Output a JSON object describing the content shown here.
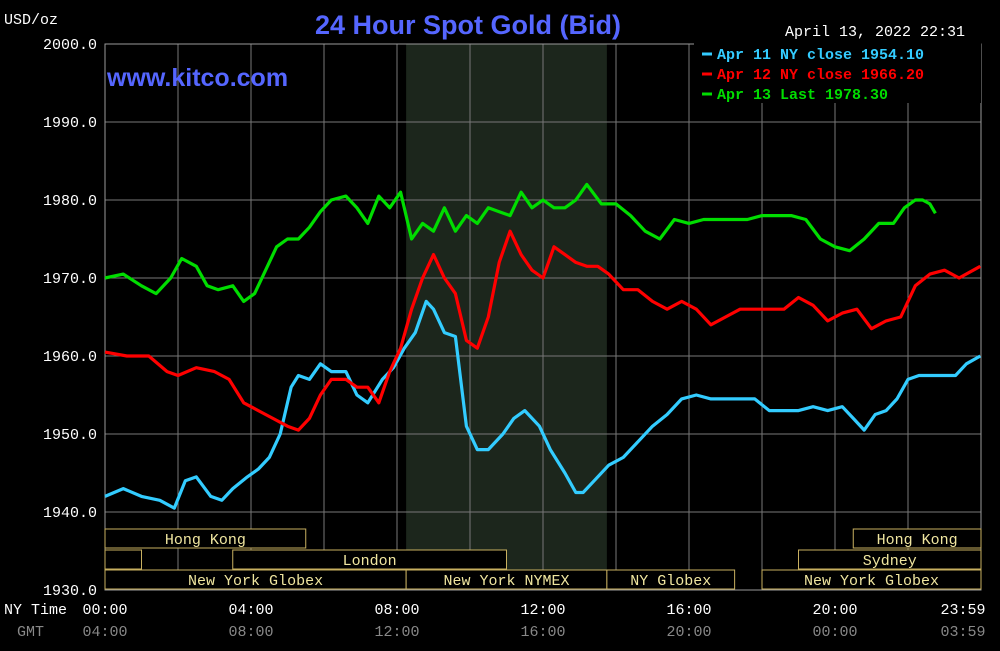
{
  "header": {
    "unit": "USD/oz",
    "title": "24 Hour Spot Gold (Bid)",
    "timestamp": "April 13, 2022 22:31",
    "watermark": "www.kitco.com"
  },
  "legend": {
    "entries": [
      {
        "label": "Apr 11 NY close 1954.10",
        "color": "#33ccff"
      },
      {
        "label": "Apr 12 NY close 1966.20",
        "color": "#ff0000"
      },
      {
        "label": "Apr 13 Last 1978.30",
        "color": "#00dd00"
      }
    ]
  },
  "axis": {
    "ny_time_label": "NY Time",
    "gmt_label": "GMT",
    "x_ticks_ny": [
      "00:00",
      "04:00",
      "08:00",
      "12:00",
      "16:00",
      "20:00",
      "23:59"
    ],
    "x_ticks_gmt": [
      "04:00",
      "08:00",
      "12:00",
      "16:00",
      "20:00",
      "00:00",
      "03:59"
    ],
    "y_ticks": [
      "2000.0",
      "1990.0",
      "1980.0",
      "1970.0",
      "1960.0",
      "1950.0",
      "1940.0",
      "1930.0"
    ]
  },
  "sessions": {
    "row1": [
      {
        "label": "Hong Kong",
        "start": 0.0,
        "end": 5.5
      },
      {
        "label": "Hong Kong",
        "start": 20.5,
        "end": 24.0
      }
    ],
    "row2": [
      {
        "label": "",
        "start": 0.0,
        "end": 1.0
      },
      {
        "label": "London",
        "start": 3.5,
        "end": 11.0
      },
      {
        "label": "Sydney",
        "start": 19.0,
        "end": 24.0
      }
    ],
    "row3": [
      {
        "label": "New York Globex",
        "start": 0.0,
        "end": 8.25
      },
      {
        "label": "New York NYMEX",
        "start": 8.25,
        "end": 13.75
      },
      {
        "label": "NY Globex",
        "start": 13.75,
        "end": 17.25
      },
      {
        "label": "New York Globex",
        "start": 18.0,
        "end": 24.0
      }
    ]
  },
  "chart_data": {
    "type": "line",
    "title": "24 Hour Spot Gold (Bid)",
    "ylabel": "USD/oz",
    "xlabel": "NY Time",
    "x_unit": "hours (NY time)",
    "xlim": [
      0,
      24
    ],
    "ylim": [
      1930,
      2000
    ],
    "grid": true,
    "legend_position": "top-right",
    "nymex_shade": [
      8.25,
      13.75
    ],
    "series": [
      {
        "name": "Apr 11 NY close 1954.10",
        "color": "#33ccff",
        "x": [
          0,
          0.5,
          1,
          1.5,
          1.9,
          2.2,
          2.5,
          2.9,
          3.2,
          3.5,
          3.9,
          4.2,
          4.5,
          4.8,
          5.1,
          5.3,
          5.6,
          5.9,
          6.2,
          6.6,
          6.9,
          7.2,
          7.6,
          7.9,
          8.2,
          8.5,
          8.8,
          9.0,
          9.3,
          9.6,
          9.9,
          10.2,
          10.5,
          10.9,
          11.2,
          11.5,
          11.9,
          12.2,
          12.6,
          12.9,
          13.1,
          13.4,
          13.8,
          14.2,
          14.6,
          15.0,
          15.4,
          15.8,
          16.2,
          16.6,
          17.0,
          17.4,
          17.8,
          18.2,
          18.6,
          19.0,
          19.4,
          19.8,
          20.2,
          20.5,
          20.8,
          21.1,
          21.4,
          21.7,
          22.0,
          22.3,
          22.7,
          23.0,
          23.3,
          23.6,
          23.98
        ],
        "y": [
          1942,
          1943,
          1942,
          1941.5,
          1940.5,
          1944,
          1944.5,
          1942,
          1941.5,
          1943,
          1944.5,
          1945.5,
          1947,
          1950,
          1956,
          1957.5,
          1957,
          1959,
          1958,
          1958,
          1955,
          1954,
          1957,
          1958.5,
          1961,
          1963,
          1967,
          1966,
          1963,
          1962.5,
          1951,
          1948,
          1948,
          1950,
          1952,
          1953,
          1951,
          1948,
          1945,
          1942.5,
          1942.5,
          1944,
          1946,
          1947,
          1949,
          1951,
          1952.5,
          1954.5,
          1955,
          1954.5,
          1954.5,
          1954.5,
          1954.5,
          1953,
          1953,
          1953,
          1953.5,
          1953,
          1953.5,
          1952,
          1950.5,
          1952.5,
          1953,
          1954.5,
          1957,
          1957.5,
          1957.5,
          1957.5,
          1957.5,
          1959,
          1960
        ]
      },
      {
        "name": "Apr 12 NY close 1966.20",
        "color": "#ff0000",
        "x": [
          0,
          0.6,
          1.2,
          1.7,
          2.0,
          2.5,
          3.0,
          3.4,
          3.8,
          4.2,
          4.6,
          5.0,
          5.3,
          5.6,
          5.9,
          6.2,
          6.6,
          6.9,
          7.2,
          7.5,
          7.8,
          8.1,
          8.4,
          8.7,
          9.0,
          9.3,
          9.6,
          9.9,
          10.2,
          10.5,
          10.8,
          11.1,
          11.4,
          11.7,
          12.0,
          12.3,
          12.6,
          12.9,
          13.2,
          13.5,
          13.8,
          14.2,
          14.6,
          15.0,
          15.4,
          15.8,
          16.2,
          16.6,
          17.0,
          17.4,
          17.8,
          18.2,
          18.6,
          19.0,
          19.4,
          19.8,
          20.2,
          20.6,
          21.0,
          21.4,
          21.8,
          22.2,
          22.6,
          23.0,
          23.4,
          23.98
        ],
        "y": [
          1960.5,
          1960,
          1960,
          1958,
          1957.5,
          1958.5,
          1958,
          1957,
          1954,
          1953,
          1952,
          1951,
          1950.5,
          1952,
          1955,
          1957,
          1957,
          1956,
          1956,
          1954,
          1958,
          1961,
          1966,
          1970,
          1973,
          1970,
          1968,
          1962,
          1961,
          1965,
          1972,
          1976,
          1973,
          1971,
          1970,
          1974,
          1973,
          1972,
          1971.5,
          1971.5,
          1970.5,
          1968.5,
          1968.5,
          1967,
          1966,
          1967,
          1966,
          1964,
          1965,
          1966,
          1966,
          1966,
          1966,
          1967.5,
          1966.5,
          1964.5,
          1965.5,
          1966,
          1963.5,
          1964.5,
          1965,
          1969,
          1970.5,
          1971,
          1970,
          1971.5
        ]
      },
      {
        "name": "Apr 13 Last 1978.30",
        "color": "#00dd00",
        "x": [
          0,
          0.5,
          1.0,
          1.4,
          1.8,
          2.1,
          2.5,
          2.8,
          3.1,
          3.5,
          3.8,
          4.1,
          4.4,
          4.7,
          5.0,
          5.3,
          5.6,
          5.9,
          6.2,
          6.6,
          6.9,
          7.2,
          7.5,
          7.8,
          8.1,
          8.4,
          8.7,
          9.0,
          9.3,
          9.6,
          9.9,
          10.2,
          10.5,
          10.8,
          11.1,
          11.4,
          11.7,
          12.0,
          12.3,
          12.6,
          12.9,
          13.2,
          13.6,
          14.0,
          14.4,
          14.8,
          15.2,
          15.6,
          16.0,
          16.4,
          16.8,
          17.2,
          17.6,
          18.0,
          18.4,
          18.8,
          19.2,
          19.6,
          20.0,
          20.4,
          20.8,
          21.2,
          21.6,
          21.9,
          22.2,
          22.4,
          22.6,
          22.75
        ],
        "y": [
          1970,
          1970.5,
          1969,
          1968,
          1970,
          1972.5,
          1971.5,
          1969,
          1968.5,
          1969,
          1967,
          1968,
          1971,
          1974,
          1975,
          1975,
          1976.5,
          1978.5,
          1980,
          1980.5,
          1979,
          1977,
          1980.5,
          1979,
          1981,
          1975,
          1977,
          1976,
          1979,
          1976,
          1978,
          1977,
          1979,
          1978.5,
          1978,
          1981,
          1979,
          1980,
          1979,
          1979,
          1980,
          1982,
          1979.5,
          1979.5,
          1978,
          1976,
          1975,
          1977.5,
          1977,
          1977.5,
          1977.5,
          1977.5,
          1977.5,
          1978,
          1978,
          1978,
          1977.5,
          1975,
          1974,
          1973.5,
          1975,
          1977,
          1977,
          1979,
          1980,
          1980,
          1979.5,
          1978.3
        ]
      }
    ]
  }
}
